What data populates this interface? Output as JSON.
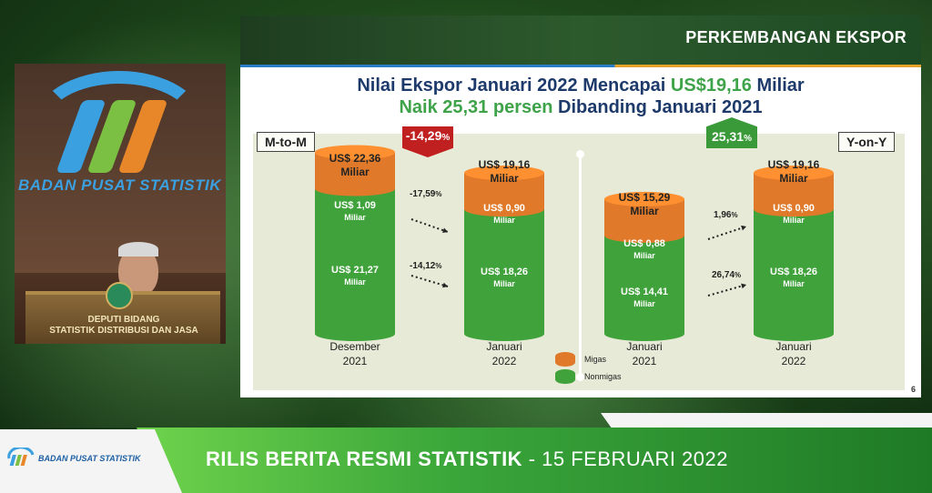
{
  "colors": {
    "migas": "#e07a2a",
    "nonmigas": "#3fa23a",
    "down_badge": "#c12020",
    "up_badge": "#3a9a3a",
    "headline_dark": "#1d3a6b",
    "headline_green": "#3fa34a"
  },
  "video": {
    "wall_text": "BADAN PUSAT STATISTIK",
    "podium_text_line1": "DEPUTI BIDANG",
    "podium_text_line2": "STATISTIK DISTRIBUSI DAN JASA"
  },
  "slide": {
    "header_title": "PERKEMBANGAN EKSPOR",
    "headline1_part1": "Nilai Ekspor Januari 2022 Mencapai ",
    "headline1_accent": "US$19,16",
    "headline1_part2": " Miliar",
    "headline2_part1": "Naik 25,31 persen ",
    "headline2_dark": "Dibanding Januari 2021",
    "tag_left": "M-to-M",
    "tag_right": "Y-on-Y",
    "badge_mtm_value": "-14,29",
    "badge_mtm_pct": "%",
    "badge_yoy_value": "25,31",
    "badge_yoy_pct": "%",
    "page_number": "6"
  },
  "chart_data": {
    "type": "bar",
    "stacked": true,
    "unit": "Miliar US$",
    "categories": [
      "Desember 2021",
      "Januari 2022",
      "Januari 2021",
      "Januari 2022"
    ],
    "series": [
      {
        "name": "Migas",
        "values": [
          1.09,
          0.9,
          0.88,
          0.9
        ]
      },
      {
        "name": "Nonmigas",
        "values": [
          21.27,
          18.26,
          14.41,
          18.26
        ]
      }
    ],
    "totals": [
      22.36,
      19.16,
      15.29,
      19.16
    ],
    "groups": [
      {
        "label": "M-to-M",
        "change": "-14,29%",
        "migas_change": "-17,59%",
        "nonmigas_change": "-14,12%"
      },
      {
        "label": "Y-on-Y",
        "change": "25,31%",
        "migas_change": "1,96%",
        "nonmigas_change": "26,74%"
      }
    ],
    "legend": [
      "Migas",
      "Nonmigas"
    ],
    "legend_placement": "bottom-center"
  },
  "bars": [
    {
      "total_line1": "US$ 22,36",
      "total_line2": "Miliar",
      "migas_line1": "US$ 1,09",
      "migas_line2": "Miliar",
      "nonmigas_line1": "US$ 21,27",
      "nonmigas_line2": "Miliar",
      "cat_line1": "Desember",
      "cat_line2": "2021"
    },
    {
      "total_line1": "US$ 19,16",
      "total_line2": "Miliar",
      "migas_line1": "US$ 0,90",
      "migas_line2": "Miliar",
      "nonmigas_line1": "US$ 18,26",
      "nonmigas_line2": "Miliar",
      "cat_line1": "Januari",
      "cat_line2": "2022"
    },
    {
      "total_line1": "US$ 15,29",
      "total_line2": "Miliar",
      "migas_line1": "US$ 0,88",
      "migas_line2": "Miliar",
      "nonmigas_line1": "US$ 14,41",
      "nonmigas_line2": "Miliar",
      "cat_line1": "Januari",
      "cat_line2": "2021"
    },
    {
      "total_line1": "US$ 19,16",
      "total_line2": "Miliar",
      "migas_line1": "US$ 0,90",
      "migas_line2": "Miliar",
      "nonmigas_line1": "US$ 18,26",
      "nonmigas_line2": "Miliar",
      "cat_line1": "Januari",
      "cat_line2": "2022"
    }
  ],
  "arrows": [
    {
      "value": "-17,59",
      "pct": "%"
    },
    {
      "value": "-14,12",
      "pct": "%"
    },
    {
      "value": "1,96",
      "pct": "%"
    },
    {
      "value": "26,74",
      "pct": "%"
    }
  ],
  "legend": {
    "migas": "Migas",
    "nonmigas": "Nonmigas"
  },
  "banner": {
    "bps_text": "BADAN PUSAT STATISTIK",
    "title_strong": "RILIS BERITA RESMI STATISTIK",
    "title_rest": " - 15 FEBRUARI 2022"
  }
}
